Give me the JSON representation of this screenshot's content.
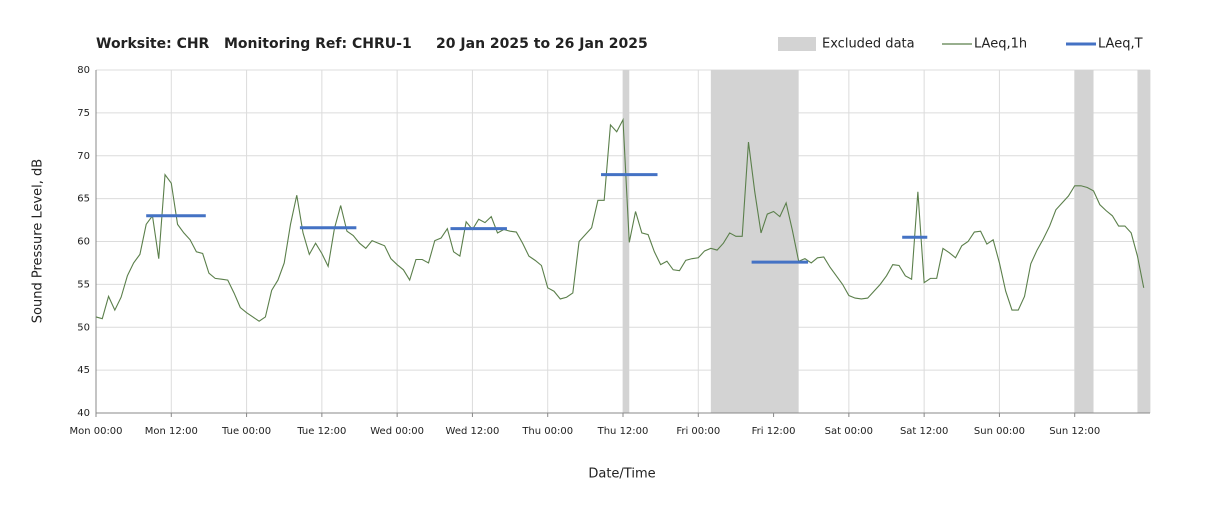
{
  "chart_data": {
    "type": "line",
    "title": "Worksite: CHR   Monitoring Ref: CHRU-1     20 Jan 2025 to 26 Jan 2025",
    "x_label": "Date/Time",
    "y_label": "Sound Pressure Level, dB",
    "xlim": [
      0,
      168
    ],
    "ylim": [
      40,
      80
    ],
    "yticks": [
      40,
      45,
      50,
      55,
      60,
      65,
      70,
      75,
      80
    ],
    "xticks": [
      {
        "value": 0,
        "label": "Mon 00:00"
      },
      {
        "value": 12,
        "label": "Mon 12:00"
      },
      {
        "value": 24,
        "label": "Tue 00:00"
      },
      {
        "value": 36,
        "label": "Tue 12:00"
      },
      {
        "value": 48,
        "label": "Wed 00:00"
      },
      {
        "value": 60,
        "label": "Wed 12:00"
      },
      {
        "value": 72,
        "label": "Thu 00:00"
      },
      {
        "value": 84,
        "label": "Thu 12:00"
      },
      {
        "value": 96,
        "label": "Fri 00:00"
      },
      {
        "value": 108,
        "label": "Fri 12:00"
      },
      {
        "value": 120,
        "label": "Sat 00:00"
      },
      {
        "value": 132,
        "label": "Sat 12:00"
      },
      {
        "value": 144,
        "label": "Sun 00:00"
      },
      {
        "value": 156,
        "label": "Sun 12:00"
      }
    ],
    "grid": true,
    "excluded": {
      "name": "Excluded data",
      "color": "#d3d3d3",
      "ranges": [
        [
          84,
          85
        ],
        [
          98,
          112
        ],
        [
          156,
          159
        ],
        [
          166,
          168
        ]
      ]
    },
    "x": [
      0,
      1,
      2,
      3,
      4,
      5,
      6,
      7,
      8,
      9,
      10,
      11,
      12,
      13,
      14,
      15,
      16,
      17,
      18,
      19,
      20,
      21,
      22,
      23,
      24,
      25,
      26,
      27,
      28,
      29,
      30,
      31,
      32,
      33,
      34,
      35,
      36,
      37,
      38,
      39,
      40,
      41,
      42,
      43,
      44,
      45,
      46,
      47,
      48,
      49,
      50,
      51,
      52,
      53,
      54,
      55,
      56,
      57,
      58,
      59,
      60,
      61,
      62,
      63,
      64,
      65,
      66,
      67,
      68,
      69,
      70,
      71,
      72,
      73,
      74,
      75,
      76,
      77,
      78,
      79,
      80,
      81,
      82,
      83,
      84,
      85,
      86,
      87,
      88,
      89,
      90,
      91,
      92,
      93,
      94,
      95,
      96,
      97,
      98,
      99,
      100,
      101,
      102,
      103,
      104,
      105,
      106,
      107,
      108,
      109,
      110,
      111,
      112,
      113,
      114,
      115,
      116,
      117,
      118,
      119,
      120,
      121,
      122,
      123,
      124,
      125,
      126,
      127,
      128,
      129,
      130,
      131,
      132,
      133,
      134,
      135,
      136,
      137,
      138,
      139,
      140,
      141,
      142,
      143,
      144,
      145,
      146,
      147,
      148,
      149,
      150,
      151,
      152,
      153,
      154,
      155,
      156,
      157,
      158,
      159,
      160,
      161,
      162,
      163,
      164,
      165,
      166,
      167
    ],
    "series": [
      {
        "name": "LAeq,1h",
        "color": "#5b7f4b",
        "values": [
          51.2,
          51,
          53.6,
          52,
          53.5,
          56,
          57.5,
          58.5,
          62,
          63,
          58,
          67.8,
          66.8,
          62,
          61,
          60.2,
          58.8,
          58.6,
          56.3,
          55.7,
          55.6,
          55.5,
          54,
          52.3,
          51.7,
          51.2,
          50.7,
          51.2,
          54.3,
          55.5,
          57.5,
          62,
          65.4,
          61,
          58.5,
          59.8,
          58.6,
          57.1,
          61.5,
          64.2,
          61.2,
          60.7,
          59.8,
          59.2,
          60.1,
          59.8,
          59.5,
          58,
          57.3,
          56.7,
          55.5,
          57.9,
          57.9,
          57.5,
          60.1,
          60.4,
          61.5,
          58.8,
          58.3,
          62.3,
          61.4,
          62.6,
          62.2,
          62.9,
          61,
          61.4,
          61.2,
          61.1,
          59.8,
          58.3,
          57.8,
          57.2,
          54.6,
          54.2,
          53.3,
          53.5,
          54,
          60,
          60.8,
          61.6,
          64.8,
          64.8,
          73.6,
          72.8,
          74.2,
          59.9,
          63.5,
          61,
          60.8,
          58.8,
          57.3,
          57.7,
          56.7,
          56.6,
          57.8,
          58,
          58.1,
          58.9,
          59.2,
          59,
          59.8,
          61,
          60.6,
          60.6,
          71.6,
          65.8,
          61,
          63.2,
          63.5,
          62.9,
          64.5,
          61.3,
          57.7,
          58,
          57.5,
          58.1,
          58.2,
          57,
          56,
          55,
          53.7,
          53.4,
          53.3,
          53.4,
          54.2,
          55,
          56,
          57.3,
          57.2,
          56,
          55.6,
          65.8,
          55.2,
          55.7,
          55.7,
          59.2,
          58.7,
          58.1,
          59.5,
          60,
          61.1,
          61.2,
          59.7,
          60.2,
          57.5,
          54.2,
          52,
          52,
          53.6,
          57.4,
          59,
          60.3,
          61.8,
          63.7,
          64.5,
          65.3,
          66.5,
          66.5,
          66.3,
          65.9,
          64.3,
          63.6,
          63,
          61.8,
          61.8,
          61,
          58.3,
          54.6
        ]
      }
    ],
    "periods": {
      "name": "LAeq,T",
      "color": "#4472c4",
      "items": [
        {
          "start": 8,
          "end": 17.5,
          "value": 63
        },
        {
          "start": 32.5,
          "end": 41.5,
          "value": 61.6
        },
        {
          "start": 56.5,
          "end": 65.5,
          "value": 61.5
        },
        {
          "start": 80.5,
          "end": 89.5,
          "value": 67.8
        },
        {
          "start": 104.5,
          "end": 113.5,
          "value": 57.6
        },
        {
          "start": 128.5,
          "end": 132.5,
          "value": 60.5
        }
      ]
    }
  }
}
